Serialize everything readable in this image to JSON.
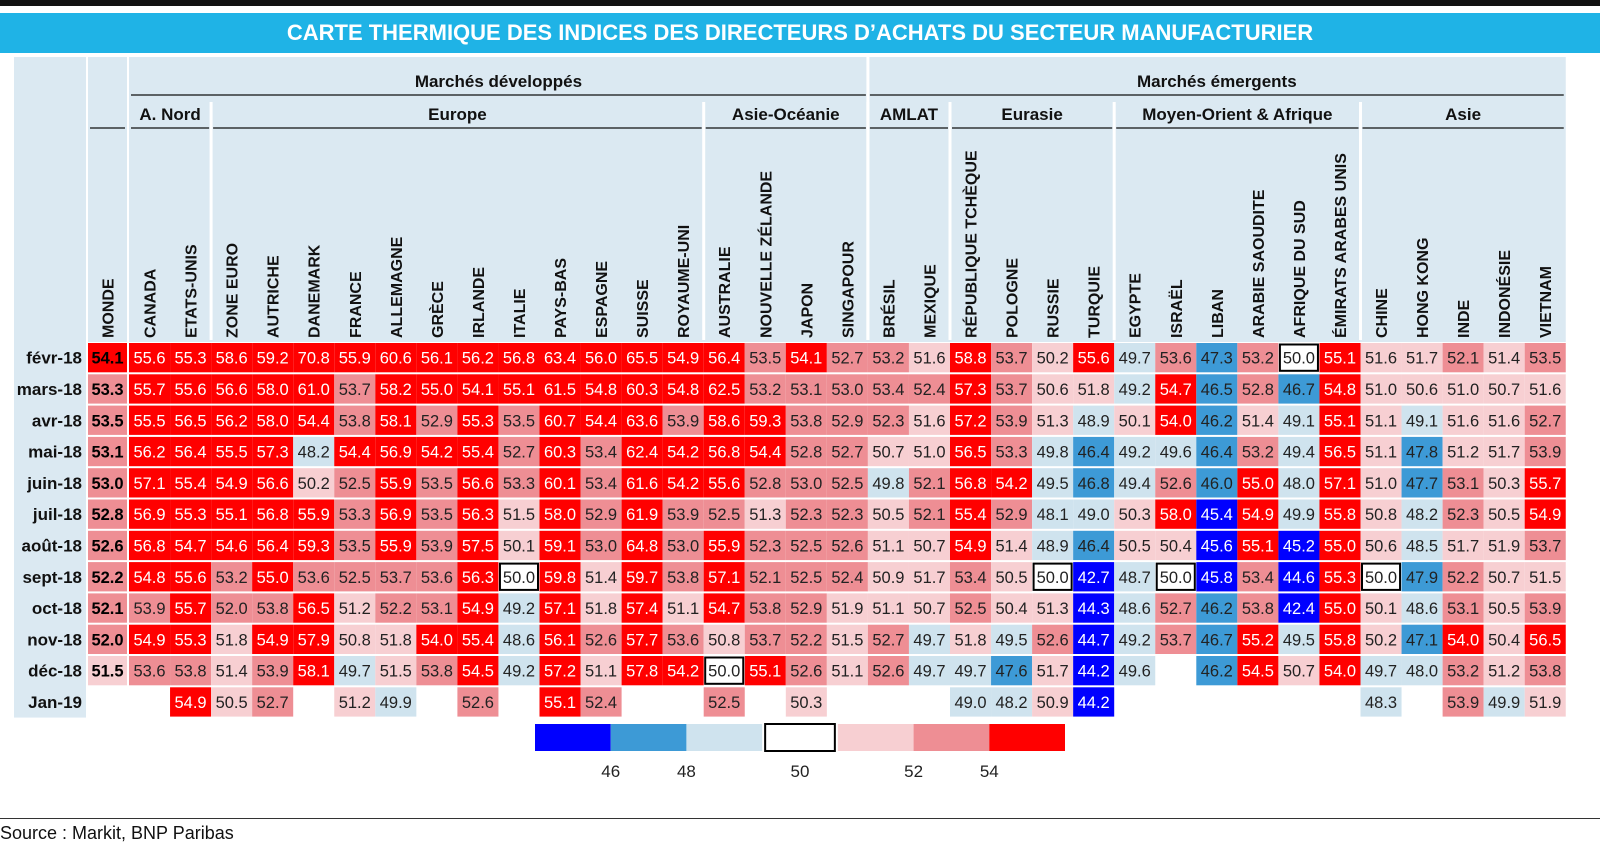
{
  "title": "CARTE THERMIQUE DES INDICES DES DIRECTEURS D’ACHATS DU SECTEUR MANUFACTURIER",
  "source": "Source : Markit, BNP Paribas",
  "palette": {
    "strong_blue": "#0000ff",
    "mid_blue": "#3d9ad6",
    "light_blue": "#cfe3ee",
    "white": "#ffffff",
    "light_pink": "#f7cfd2",
    "pink": "#ee8e94",
    "red": "#ff0000",
    "label_bg": "#dbe9f2"
  },
  "chart_data": {
    "type": "heatmap",
    "title": "CARTE THERMIQUE DES INDICES DES DIRECTEURS D’ACHATS DU SECTEUR MANUFACTURIER",
    "groups_level1": [
      {
        "label": "Marchés développés",
        "span": 18
      },
      {
        "label": "Marchés émergents",
        "span": 17
      }
    ],
    "groups_level2": [
      {
        "label": "A. Nord",
        "span": 2
      },
      {
        "label": "Europe",
        "span": 12
      },
      {
        "label": "Asie-Océanie",
        "span": 4
      },
      {
        "label": "AMLAT",
        "span": 2
      },
      {
        "label": "Eurasie",
        "span": 4
      },
      {
        "label": "Moyen-Orient & Afrique",
        "span": 6
      },
      {
        "label": "Asie",
        "span": 5
      }
    ],
    "columns": [
      "MONDE",
      "CANADA",
      "ETATS-UNIS",
      "ZONE EURO",
      "AUTRICHE",
      "DANEMARK",
      "FRANCE",
      "ALLEMAGNE",
      "GRÈCE",
      "IRLANDE",
      "ITALIE",
      "PAYS-BAS",
      "ESPAGNE",
      "SUISSE",
      "ROYAUME-UNI",
      "AUSTRALIE",
      "NOUVELLE ZÉLANDE",
      "JAPON",
      "SINGAPOUR",
      "BRÉSIL",
      "MEXIQUE",
      "RÉPUBLIQUE TCHÈQUE",
      "POLOGNE",
      "RUSSIE",
      "TURQUIE",
      "EGYPTE",
      "ISRAËL",
      "LIBAN",
      "ARABIE SAOUDITE",
      "AFRIQUE DU SUD",
      "ÉMIRATS ARABES UNIS",
      "CHINE",
      "HONG KONG",
      "INDE",
      "INDONÉSIE",
      "VIETNAM"
    ],
    "rows": [
      "févr-18",
      "mars-18",
      "avr-18",
      "mai-18",
      "juin-18",
      "juil-18",
      "août-18",
      "sept-18",
      "oct-18",
      "nov-18",
      "déc-18",
      "Jan-19"
    ],
    "values": [
      [
        54.1,
        55.6,
        55.3,
        58.6,
        59.2,
        70.8,
        55.9,
        60.6,
        56.1,
        56.2,
        56.8,
        63.4,
        56.0,
        65.5,
        54.9,
        56.4,
        53.5,
        54.1,
        52.7,
        53.2,
        51.6,
        58.8,
        53.7,
        50.2,
        55.6,
        49.7,
        53.6,
        47.3,
        53.2,
        50.0,
        55.1,
        51.6,
        51.7,
        52.1,
        51.4,
        53.5
      ],
      [
        53.3,
        55.7,
        55.6,
        56.6,
        58.0,
        61.0,
        53.7,
        58.2,
        55.0,
        54.1,
        55.1,
        61.5,
        54.8,
        60.3,
        54.8,
        62.5,
        53.2,
        53.1,
        53.0,
        53.4,
        52.4,
        57.3,
        53.7,
        50.6,
        51.8,
        49.2,
        54.7,
        46.5,
        52.8,
        46.7,
        54.8,
        51.0,
        50.6,
        51.0,
        50.7,
        51.6
      ],
      [
        53.5,
        55.5,
        56.5,
        56.2,
        58.0,
        54.4,
        53.8,
        58.1,
        52.9,
        55.3,
        53.5,
        60.7,
        54.4,
        63.6,
        53.9,
        58.6,
        59.3,
        53.8,
        52.9,
        52.3,
        51.6,
        57.2,
        53.9,
        51.3,
        48.9,
        50.1,
        54.0,
        46.2,
        51.4,
        49.1,
        55.1,
        51.1,
        49.1,
        51.6,
        51.6,
        52.7
      ],
      [
        53.1,
        56.2,
        56.4,
        55.5,
        57.3,
        48.2,
        54.4,
        56.9,
        54.2,
        55.4,
        52.7,
        60.3,
        53.4,
        62.4,
        54.2,
        56.8,
        54.4,
        52.8,
        52.7,
        50.7,
        51.0,
        56.5,
        53.3,
        49.8,
        46.4,
        49.2,
        49.6,
        46.4,
        53.2,
        49.4,
        56.5,
        51.1,
        47.8,
        51.2,
        51.7,
        53.9
      ],
      [
        53.0,
        57.1,
        55.4,
        54.9,
        56.6,
        50.2,
        52.5,
        55.9,
        53.5,
        56.6,
        53.3,
        60.1,
        53.4,
        61.6,
        54.2,
        55.6,
        52.8,
        53.0,
        52.5,
        49.8,
        52.1,
        56.8,
        54.2,
        49.5,
        46.8,
        49.4,
        52.6,
        46.0,
        55.0,
        48.0,
        57.1,
        51.0,
        47.7,
        53.1,
        50.3,
        55.7
      ],
      [
        52.8,
        56.9,
        55.3,
        55.1,
        56.8,
        55.9,
        53.3,
        56.9,
        53.5,
        56.3,
        51.5,
        58.0,
        52.9,
        61.9,
        53.9,
        52.5,
        51.3,
        52.3,
        52.3,
        50.5,
        52.1,
        55.4,
        52.9,
        48.1,
        49.0,
        50.3,
        58.0,
        45.4,
        54.9,
        49.9,
        55.8,
        50.8,
        48.2,
        52.3,
        50.5,
        54.9
      ],
      [
        52.6,
        56.8,
        54.7,
        54.6,
        56.4,
        59.3,
        53.5,
        55.9,
        53.9,
        57.5,
        50.1,
        59.1,
        53.0,
        64.8,
        53.0,
        55.9,
        52.3,
        52.5,
        52.6,
        51.1,
        50.7,
        54.9,
        51.4,
        48.9,
        46.4,
        50.5,
        50.4,
        45.6,
        55.1,
        45.2,
        55.0,
        50.6,
        48.5,
        51.7,
        51.9,
        53.7
      ],
      [
        52.2,
        54.8,
        55.6,
        53.2,
        55.0,
        53.6,
        52.5,
        53.7,
        53.6,
        56.3,
        50.0,
        59.8,
        51.4,
        59.7,
        53.8,
        57.1,
        52.1,
        52.5,
        52.4,
        50.9,
        51.7,
        53.4,
        50.5,
        50.0,
        42.7,
        48.7,
        50.0,
        45.8,
        53.4,
        44.6,
        55.3,
        50.0,
        47.9,
        52.2,
        50.7,
        51.5
      ],
      [
        52.1,
        53.9,
        55.7,
        52.0,
        53.8,
        56.5,
        51.2,
        52.2,
        53.1,
        54.9,
        49.2,
        57.1,
        51.8,
        57.4,
        51.1,
        54.7,
        53.8,
        52.9,
        51.9,
        51.1,
        50.7,
        52.5,
        50.4,
        51.3,
        44.3,
        48.6,
        52.7,
        46.2,
        53.8,
        42.4,
        55.0,
        50.1,
        48.6,
        53.1,
        50.5,
        53.9
      ],
      [
        52.0,
        54.9,
        55.3,
        51.8,
        54.9,
        57.9,
        50.8,
        51.8,
        54.0,
        55.4,
        48.6,
        56.1,
        52.6,
        57.7,
        53.6,
        50.8,
        53.7,
        52.2,
        51.5,
        52.7,
        49.7,
        51.8,
        49.5,
        52.6,
        44.7,
        49.2,
        53.7,
        46.7,
        55.2,
        49.5,
        55.8,
        50.2,
        47.1,
        54.0,
        50.4,
        56.5
      ],
      [
        51.5,
        53.6,
        53.8,
        51.4,
        53.9,
        58.1,
        49.7,
        51.5,
        53.8,
        54.5,
        49.2,
        57.2,
        51.1,
        57.8,
        54.2,
        50.0,
        55.1,
        52.6,
        51.1,
        52.6,
        49.7,
        49.7,
        47.6,
        51.7,
        44.2,
        49.6,
        null,
        46.2,
        54.5,
        50.7,
        54.0,
        49.7,
        48.0,
        53.2,
        51.2,
        53.8
      ],
      [
        null,
        null,
        54.9,
        50.5,
        52.7,
        null,
        51.2,
        49.9,
        null,
        52.6,
        null,
        55.1,
        52.4,
        null,
        null,
        52.5,
        null,
        50.3,
        null,
        null,
        null,
        49.0,
        48.2,
        50.9,
        44.2,
        null,
        null,
        null,
        null,
        null,
        null,
        48.3,
        null,
        53.9,
        49.9,
        51.9
      ]
    ],
    "legend": {
      "tick_labels": [
        "46",
        "48",
        "50",
        "52",
        "54"
      ],
      "bins": [
        "< 46",
        "46–48",
        "48–50",
        "50",
        "50–52",
        "52–54",
        "> 54"
      ]
    }
  }
}
